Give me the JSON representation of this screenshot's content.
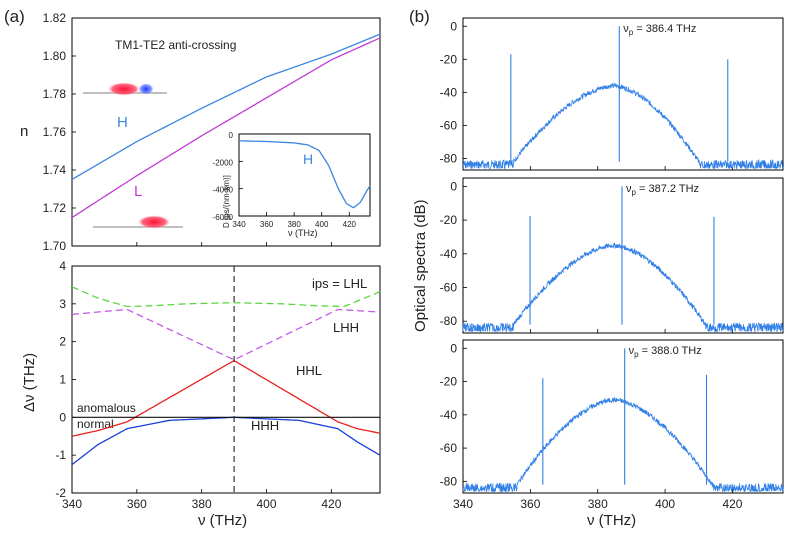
{
  "figure": {
    "panel_a_label": "(a)",
    "panel_b_label": "(b)"
  },
  "chart_data": [
    {
      "id": "n-plot",
      "type": "line",
      "title": "TM1-TE2 anti-crossing",
      "xlabel": "",
      "ylabel": "n",
      "xlim": [
        340,
        435
      ],
      "ylim": [
        1.7,
        1.82
      ],
      "yticks": [
        1.7,
        1.72,
        1.74,
        1.76,
        1.78,
        1.8,
        1.82
      ],
      "series": [
        {
          "name": "H",
          "color": "#3b86e0",
          "x": [
            340,
            360,
            380,
            400,
            420,
            435
          ],
          "y": [
            1.735,
            1.755,
            1.7725,
            1.789,
            1.801,
            1.8115
          ]
        },
        {
          "name": "L",
          "color": "#c33bd6",
          "x": [
            340,
            360,
            380,
            400,
            420,
            435
          ],
          "y": [
            1.715,
            1.737,
            1.758,
            1.778,
            1.798,
            1.8095
          ]
        }
      ],
      "annotations": [
        "H",
        "L"
      ]
    },
    {
      "id": "dispersion-inset",
      "type": "line",
      "xlabel": "ν (THz)",
      "ylabel": "D [ps/(nm·km)]",
      "xlim": [
        340,
        435
      ],
      "ylim": [
        -6000,
        0
      ],
      "xticks": [
        340,
        360,
        380,
        400,
        420
      ],
      "yticks": [
        0,
        -2000,
        -4000,
        -6000
      ],
      "annotation": "H",
      "series": [
        {
          "name": "H",
          "color": "#3b86e0",
          "x": [
            340,
            360,
            380,
            390,
            398,
            405,
            412,
            418,
            423,
            428,
            433,
            435
          ],
          "y": [
            -500,
            -550,
            -650,
            -800,
            -1200,
            -2300,
            -4000,
            -5100,
            -5400,
            -5000,
            -4100,
            -3800
          ]
        }
      ]
    },
    {
      "id": "detuning-plot",
      "type": "line",
      "xlabel": "ν (THz)",
      "ylabel": "Δν (THz)",
      "xlim": [
        340,
        435
      ],
      "ylim": [
        -2,
        4
      ],
      "xticks": [
        340,
        360,
        380,
        400,
        420
      ],
      "yticks": [
        -2,
        -1,
        0,
        1,
        2,
        3,
        4
      ],
      "pump_line_x": 390,
      "labels": {
        "ips": "ips = LHL",
        "lhh": "LHH",
        "hhl": "HHL",
        "hhh": "HHH",
        "anomalous": "anomalous",
        "normal": "normal"
      },
      "series": [
        {
          "name": "LHL",
          "color": "#5bd640",
          "dash": true,
          "x": [
            340,
            348,
            357,
            365,
            375,
            390,
            405,
            415,
            424,
            435
          ],
          "y": [
            3.45,
            3.15,
            2.93,
            2.95,
            3.0,
            3.03,
            3.0,
            2.95,
            2.93,
            3.32
          ]
        },
        {
          "name": "LHH",
          "color": "#c35be8",
          "dash": true,
          "x": [
            340,
            350,
            357,
            390,
            422,
            428,
            435
          ],
          "y": [
            2.72,
            2.8,
            2.85,
            1.52,
            2.85,
            2.82,
            2.78
          ]
        },
        {
          "name": "HHL",
          "color": "#e8221c",
          "x": [
            340,
            348,
            357,
            390,
            422,
            428,
            435
          ],
          "y": [
            -0.5,
            -0.35,
            -0.12,
            1.5,
            -0.12,
            -0.3,
            -0.42
          ]
        },
        {
          "name": "HHH",
          "color": "#1a3fd6",
          "x": [
            340,
            348,
            357,
            370,
            390,
            410,
            422,
            428,
            435
          ],
          "y": [
            -1.25,
            -0.72,
            -0.3,
            -0.08,
            0.0,
            -0.08,
            -0.3,
            -0.65,
            -1.0
          ]
        },
        {
          "name": "zero",
          "color": "#111111",
          "x": [
            340,
            435
          ],
          "y": [
            0,
            0
          ]
        }
      ]
    },
    {
      "id": "spectra",
      "type": "line",
      "xlabel": "ν (THz)",
      "ylabel": "Optical spectra (dB)",
      "xlim": [
        340,
        435
      ],
      "ylim": [
        -87,
        5
      ],
      "xticks": [
        340,
        360,
        380,
        400,
        420
      ],
      "yticks": [
        0,
        -20,
        -40,
        -60,
        -80
      ],
      "color": "#2f7fe6",
      "panels": [
        {
          "pump_label": "ν",
          "pump_sub": "p",
          "pump_text": " = 386.4 THz",
          "pump": 386.4,
          "signal": 354.2,
          "idler": 418.6,
          "center": 384.8,
          "peak": -36,
          "lo": 355,
          "hi": 410
        },
        {
          "pump_label": "ν",
          "pump_sub": "p",
          "pump_text": " = 387.2 THz",
          "pump": 387.2,
          "signal": 359.9,
          "idler": 414.5,
          "center": 384.8,
          "peak": -35,
          "lo": 355,
          "hi": 412
        },
        {
          "pump_label": "ν",
          "pump_sub": "p",
          "pump_text": " = 388.0 THz",
          "pump": 388.0,
          "signal": 363.7,
          "idler": 412.3,
          "center": 384.8,
          "peak": -31,
          "lo": 356,
          "hi": 414
        }
      ]
    }
  ]
}
